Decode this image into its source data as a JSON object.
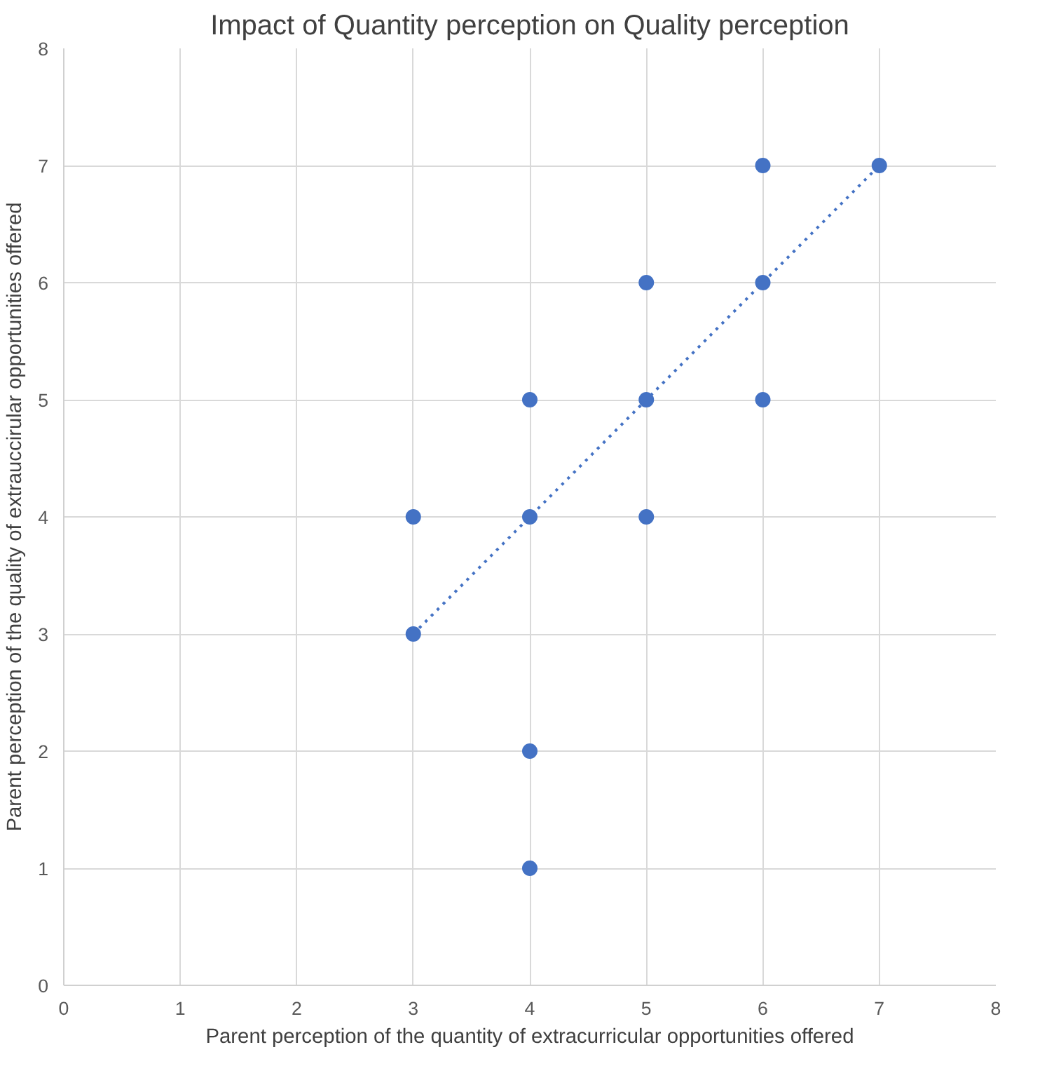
{
  "chart_data": {
    "type": "scatter",
    "title": "Impact of Quantity perception on Quality perception",
    "xlabel": "Parent perception of the quantity of extracurricular opportunities offered",
    "ylabel": "Parent perception of the quality of extrauccirular opportunities offered",
    "xlim": [
      0,
      8
    ],
    "ylim": [
      0,
      8
    ],
    "xticks": [
      0,
      1,
      2,
      3,
      4,
      5,
      6,
      7,
      8
    ],
    "yticks": [
      0,
      1,
      2,
      3,
      4,
      5,
      6,
      7,
      8
    ],
    "grid": true,
    "series": [
      {
        "marker": "circle",
        "color": "#4472c4",
        "x": [
          3,
          3,
          4,
          4,
          4,
          4,
          5,
          5,
          5,
          6,
          6,
          6,
          7
        ],
        "values": [
          4,
          3,
          5,
          4,
          2,
          1,
          6,
          5,
          4,
          7,
          6,
          5,
          7
        ]
      },
      {
        "type": "line",
        "color": "#4472c4",
        "line_style": "dotted",
        "x": [
          3,
          7
        ],
        "values": [
          3,
          7
        ]
      }
    ]
  }
}
